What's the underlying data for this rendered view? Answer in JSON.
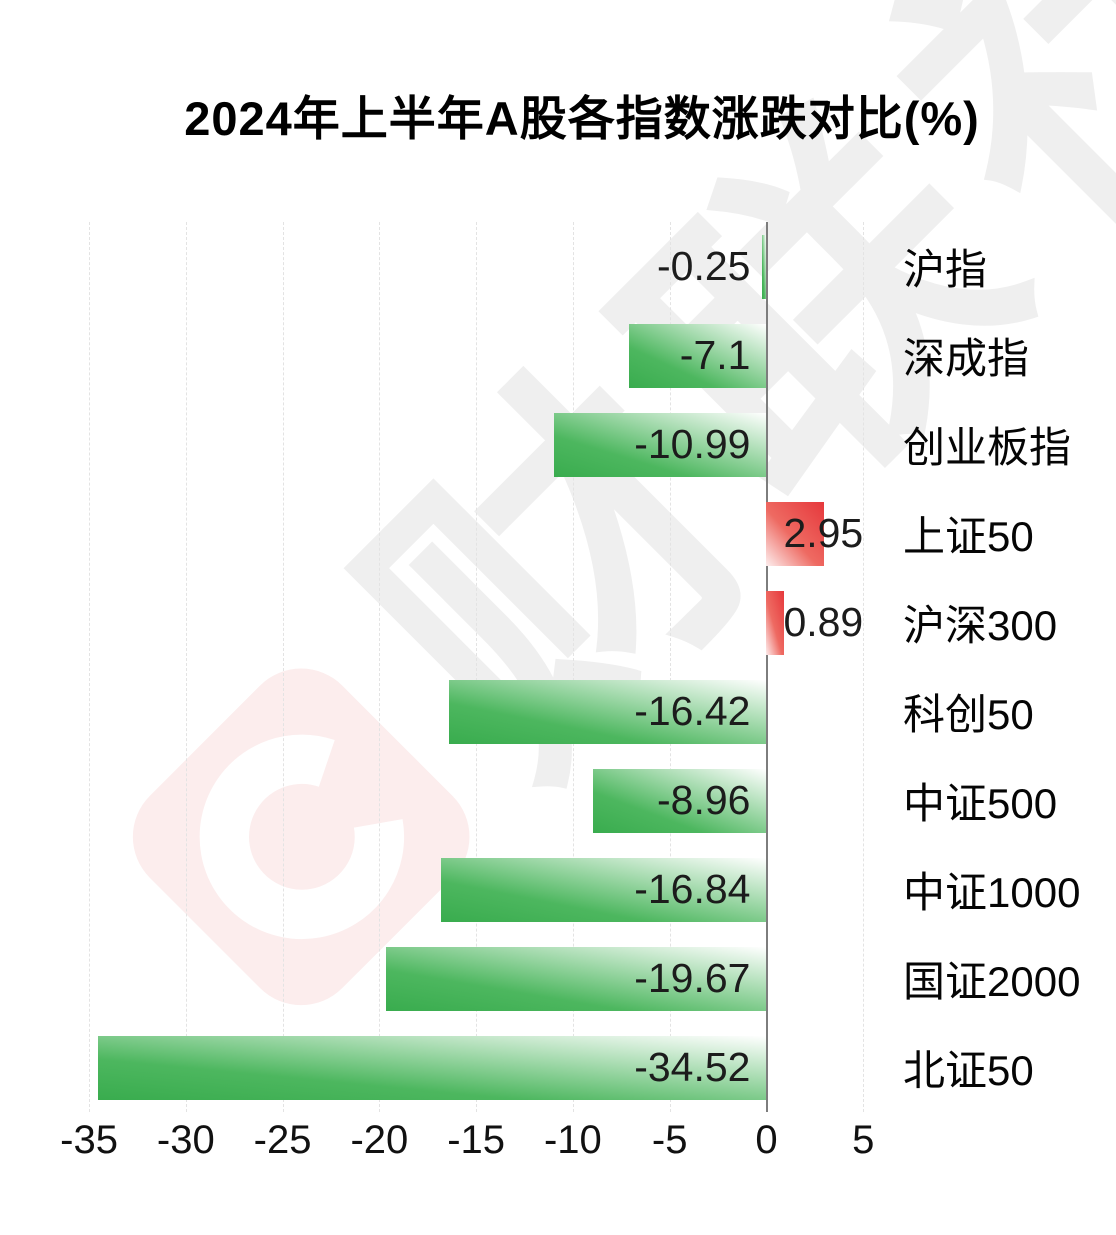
{
  "title": "2024年上半年A股各指数涨跌对比(%)",
  "watermark": {
    "brand_text": "财联社",
    "logo_letter": "C",
    "diamond_color": "#fceded",
    "text_color": "#efefef"
  },
  "chart_data": {
    "type": "bar",
    "orientation": "horizontal",
    "title": "2024年上半年A股各指数涨跌对比(%)",
    "categories": [
      "沪指",
      "深成指",
      "创业板指",
      "上证50",
      "沪深300",
      "科创50",
      "中证500",
      "中证1000",
      "国证2000",
      "北证50"
    ],
    "values": [
      -0.25,
      -7.1,
      -10.99,
      2.95,
      0.89,
      -16.42,
      -8.96,
      -16.84,
      -19.67,
      -34.52
    ],
    "value_labels": [
      "-0.25",
      "-7.1",
      "-10.99",
      "2.95",
      "0.89",
      "-16.42",
      "-8.96",
      "-16.84",
      "-19.67",
      "-34.52"
    ],
    "x_ticks": [
      -35,
      -30,
      -25,
      -20,
      -15,
      -10,
      -5,
      0,
      5
    ],
    "xlim": [
      -36.5,
      6.9
    ],
    "bar_colors": {
      "negative": "#3aad4f",
      "positive": "#e6383c"
    },
    "grid": "vertical-dashed",
    "zero_line": true,
    "legend": "none"
  }
}
